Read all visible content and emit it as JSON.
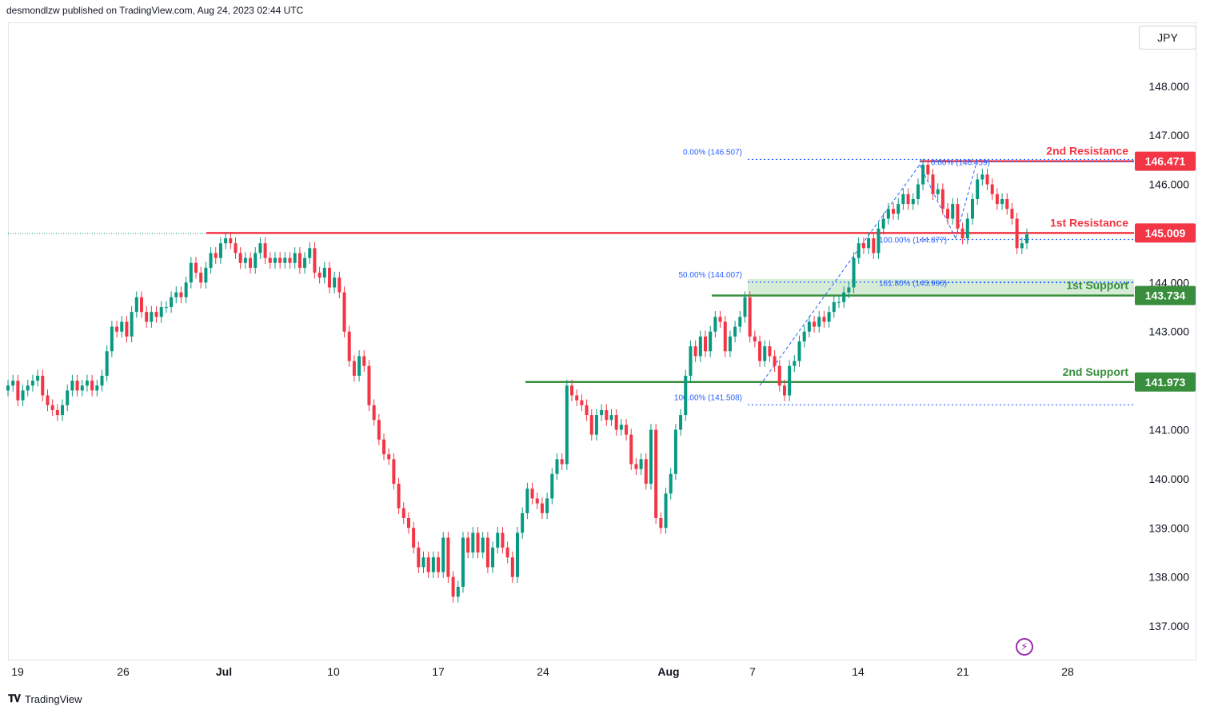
{
  "header": {
    "text": "desmondlzw published on TradingView.com, Aug 24, 2023 02:44 UTC"
  },
  "currency": "JPY",
  "footer": {
    "brand": "TradingView"
  },
  "icons": {
    "footer_logo": "tradingview-logo-icon",
    "flash": "lightning-icon"
  },
  "colors": {
    "up": "#089981",
    "down": "#f23645",
    "resistance": "#f23645",
    "support": "#388e3c",
    "fib": "#2962ff",
    "zone": "#c8e6c9"
  },
  "chart_data": {
    "type": "candlestick",
    "ylim": [
      136.3,
      149.3
    ],
    "y_ticks": [
      "137.000",
      "138.000",
      "139.000",
      "140.000",
      "141.000",
      "142.000",
      "143.000",
      "144.000",
      "145.000",
      "146.000",
      "147.000",
      "148.000"
    ],
    "x_ticks": [
      "19",
      "26",
      "Jul",
      "10",
      "17",
      "24",
      "Aug",
      "7",
      "14",
      "21",
      "28"
    ],
    "levels": [
      {
        "name": "2nd Resistance",
        "value": 146.471,
        "label": "146.471",
        "kind": "resistance"
      },
      {
        "name": "1st Resistance",
        "value": 145.009,
        "label": "145.009",
        "kind": "resistance"
      },
      {
        "name": "1st Support",
        "value": 143.734,
        "label": "143.734",
        "kind": "support"
      },
      {
        "name": "2nd Support",
        "value": 141.973,
        "label": "141.973",
        "kind": "support"
      }
    ],
    "support_zone": [
      143.734,
      144.07
    ],
    "fib_retracement_labels": [
      {
        "text": "0.00% (146.507)",
        "value": 146.507
      },
      {
        "text": "50.00% (144.007)",
        "value": 144.007
      },
      {
        "text": "100.00% (141.508)",
        "value": 141.508
      }
    ],
    "fib_extension_labels": [
      {
        "text": "0.00% (146.459)",
        "value": 146.459
      },
      {
        "text": "100.00% (144.877)",
        "value": 144.877
      },
      {
        "text": "161.80% (143.996)",
        "value": 143.996
      }
    ],
    "candles_open_close": [
      [
        141.8,
        141.9
      ],
      [
        141.9,
        142.0
      ],
      [
        142.0,
        141.6
      ],
      [
        141.6,
        141.8
      ],
      [
        141.8,
        141.9
      ],
      [
        141.9,
        142.0
      ],
      [
        142.0,
        142.1
      ],
      [
        142.1,
        141.7
      ],
      [
        141.7,
        141.5
      ],
      [
        141.5,
        141.4
      ],
      [
        141.4,
        141.3
      ],
      [
        141.3,
        141.5
      ],
      [
        141.5,
        141.8
      ],
      [
        141.8,
        142.0
      ],
      [
        142.0,
        141.8
      ],
      [
        141.8,
        141.9
      ],
      [
        141.9,
        142.0
      ],
      [
        142.0,
        141.8
      ],
      [
        141.8,
        141.9
      ],
      [
        141.9,
        142.1
      ],
      [
        142.1,
        142.6
      ],
      [
        142.6,
        143.1
      ],
      [
        143.1,
        143.0
      ],
      [
        143.0,
        143.2
      ],
      [
        143.2,
        142.9
      ],
      [
        142.9,
        143.4
      ],
      [
        143.4,
        143.7
      ],
      [
        143.7,
        143.4
      ],
      [
        143.4,
        143.2
      ],
      [
        143.2,
        143.4
      ],
      [
        143.4,
        143.3
      ],
      [
        143.3,
        143.5
      ],
      [
        143.5,
        143.5
      ],
      [
        143.5,
        143.7
      ],
      [
        143.7,
        143.8
      ],
      [
        143.8,
        143.7
      ],
      [
        143.7,
        144.0
      ],
      [
        144.0,
        144.4
      ],
      [
        144.4,
        144.2
      ],
      [
        144.2,
        144.0
      ],
      [
        144.0,
        144.3
      ],
      [
        144.3,
        144.6
      ],
      [
        144.6,
        144.5
      ],
      [
        144.5,
        144.8
      ],
      [
        144.8,
        144.9
      ],
      [
        144.9,
        144.8
      ],
      [
        144.8,
        144.6
      ],
      [
        144.6,
        144.4
      ],
      [
        144.4,
        144.5
      ],
      [
        144.5,
        144.3
      ],
      [
        144.3,
        144.6
      ],
      [
        144.6,
        144.8
      ],
      [
        144.8,
        144.5
      ],
      [
        144.5,
        144.4
      ],
      [
        144.4,
        144.5
      ],
      [
        144.5,
        144.4
      ],
      [
        144.4,
        144.5
      ],
      [
        144.5,
        144.4
      ],
      [
        144.4,
        144.6
      ],
      [
        144.6,
        144.3
      ],
      [
        144.3,
        144.5
      ],
      [
        144.5,
        144.7
      ],
      [
        144.7,
        144.2
      ],
      [
        144.2,
        144.1
      ],
      [
        144.1,
        144.3
      ],
      [
        144.3,
        143.9
      ],
      [
        143.9,
        144.1
      ],
      [
        144.1,
        143.8
      ],
      [
        143.8,
        143.0
      ],
      [
        143.0,
        142.4
      ],
      [
        142.4,
        142.1
      ],
      [
        142.1,
        142.5
      ],
      [
        142.5,
        142.3
      ],
      [
        142.3,
        141.5
      ],
      [
        141.5,
        141.2
      ],
      [
        141.2,
        140.8
      ],
      [
        140.8,
        140.5
      ],
      [
        140.5,
        140.4
      ],
      [
        140.4,
        139.9
      ],
      [
        139.9,
        139.4
      ],
      [
        139.4,
        139.2
      ],
      [
        139.2,
        139.0
      ],
      [
        139.0,
        138.6
      ],
      [
        138.6,
        138.2
      ],
      [
        138.2,
        138.4
      ],
      [
        138.4,
        138.1
      ],
      [
        138.1,
        138.4
      ],
      [
        138.4,
        138.1
      ],
      [
        138.1,
        138.8
      ],
      [
        138.8,
        138.0
      ],
      [
        138.0,
        137.6
      ],
      [
        137.6,
        137.8
      ],
      [
        137.8,
        138.8
      ],
      [
        138.8,
        138.5
      ],
      [
        138.5,
        138.9
      ],
      [
        138.9,
        138.5
      ],
      [
        138.5,
        138.8
      ],
      [
        138.8,
        138.2
      ],
      [
        138.2,
        138.6
      ],
      [
        138.6,
        138.9
      ],
      [
        138.9,
        138.6
      ],
      [
        138.6,
        138.4
      ],
      [
        138.4,
        138.0
      ],
      [
        138.0,
        138.9
      ],
      [
        138.9,
        139.3
      ],
      [
        139.3,
        139.8
      ],
      [
        139.8,
        139.6
      ],
      [
        139.6,
        139.5
      ],
      [
        139.5,
        139.3
      ],
      [
        139.3,
        139.6
      ],
      [
        139.6,
        140.1
      ],
      [
        140.1,
        140.4
      ],
      [
        140.4,
        140.3
      ],
      [
        140.3,
        141.9
      ],
      [
        141.9,
        141.7
      ],
      [
        141.7,
        141.6
      ],
      [
        141.6,
        141.5
      ],
      [
        141.5,
        141.3
      ],
      [
        141.3,
        140.9
      ],
      [
        140.9,
        141.3
      ],
      [
        141.3,
        141.4
      ],
      [
        141.4,
        141.2
      ],
      [
        141.2,
        141.3
      ],
      [
        141.3,
        141.0
      ],
      [
        141.0,
        141.1
      ],
      [
        141.1,
        140.9
      ],
      [
        140.9,
        140.3
      ],
      [
        140.3,
        140.2
      ],
      [
        140.2,
        140.4
      ],
      [
        140.4,
        139.9
      ],
      [
        139.9,
        141.0
      ],
      [
        141.0,
        139.2
      ],
      [
        139.2,
        139.0
      ],
      [
        139.0,
        139.7
      ],
      [
        139.7,
        140.1
      ],
      [
        140.1,
        141.0
      ],
      [
        141.0,
        141.3
      ],
      [
        141.3,
        142.1
      ],
      [
        142.1,
        142.7
      ],
      [
        142.7,
        142.5
      ],
      [
        142.5,
        142.9
      ],
      [
        142.9,
        142.6
      ],
      [
        142.6,
        143.0
      ],
      [
        143.0,
        143.3
      ],
      [
        143.3,
        143.2
      ],
      [
        143.2,
        142.6
      ],
      [
        142.6,
        142.9
      ],
      [
        142.9,
        143.1
      ],
      [
        143.1,
        143.3
      ],
      [
        143.3,
        143.7
      ],
      [
        143.7,
        142.9
      ],
      [
        142.9,
        142.8
      ],
      [
        142.8,
        142.4
      ],
      [
        142.4,
        142.7
      ],
      [
        142.7,
        142.5
      ],
      [
        142.5,
        142.3
      ],
      [
        142.3,
        141.9
      ],
      [
        141.9,
        141.7
      ],
      [
        141.7,
        142.3
      ],
      [
        142.3,
        142.4
      ],
      [
        142.4,
        142.8
      ],
      [
        142.8,
        143.0
      ],
      [
        143.0,
        143.2
      ],
      [
        143.2,
        143.1
      ],
      [
        143.1,
        143.3
      ],
      [
        143.3,
        143.2
      ],
      [
        143.2,
        143.4
      ],
      [
        143.4,
        143.6
      ],
      [
        143.6,
        143.6
      ],
      [
        143.6,
        143.8
      ],
      [
        143.8,
        143.9
      ],
      [
        143.9,
        144.5
      ],
      [
        144.5,
        144.8
      ],
      [
        144.8,
        144.7
      ],
      [
        144.7,
        144.9
      ],
      [
        144.9,
        144.6
      ],
      [
        144.6,
        145.1
      ],
      [
        145.1,
        145.3
      ],
      [
        145.3,
        145.5
      ],
      [
        145.5,
        145.4
      ],
      [
        145.4,
        145.6
      ],
      [
        145.6,
        145.8
      ],
      [
        145.8,
        145.6
      ],
      [
        145.6,
        145.7
      ],
      [
        145.7,
        146.0
      ],
      [
        146.0,
        146.4
      ],
      [
        146.4,
        146.2
      ],
      [
        146.2,
        145.8
      ],
      [
        145.8,
        145.9
      ],
      [
        145.9,
        145.5
      ],
      [
        145.5,
        145.3
      ],
      [
        145.3,
        145.6
      ],
      [
        145.6,
        145.1
      ],
      [
        145.1,
        144.9
      ],
      [
        144.9,
        145.3
      ],
      [
        145.3,
        145.7
      ],
      [
        145.7,
        146.1
      ],
      [
        146.1,
        146.2
      ],
      [
        146.2,
        146.0
      ],
      [
        146.0,
        145.8
      ],
      [
        145.8,
        145.6
      ],
      [
        145.6,
        145.7
      ],
      [
        145.7,
        145.5
      ],
      [
        145.5,
        145.3
      ],
      [
        145.3,
        144.7
      ],
      [
        144.7,
        144.8
      ],
      [
        144.8,
        144.98
      ]
    ]
  }
}
